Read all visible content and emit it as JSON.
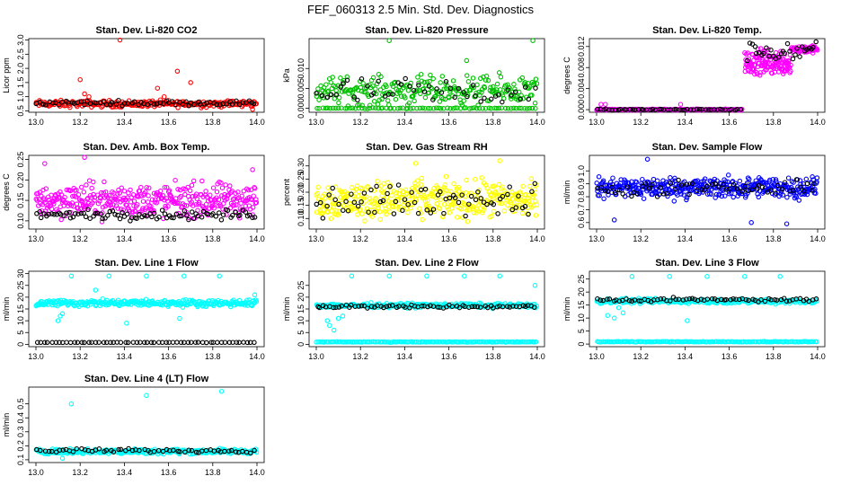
{
  "figure": {
    "title": "FEF_060313  2.5 Min. Std. Dev. Diagnostics",
    "x_ticks": [
      "13.0",
      "13.2",
      "13.4",
      "13.6",
      "13.8",
      "14.0"
    ]
  },
  "chart_data": [
    {
      "id": "co2",
      "type": "scatter",
      "title": "Stan. Dev. Li-820 CO2",
      "ylabel": "Licor ppm",
      "xlim": [
        13.0,
        14.0
      ],
      "ylim": [
        0.45,
        3.05
      ],
      "yticks": [
        "0.5",
        "1.0",
        "1.5",
        "2.0",
        "2.5",
        "3.0"
      ],
      "series": [
        {
          "color": "#ff0000",
          "n": 260,
          "base": 0.75,
          "spread": 0.1,
          "outliers": [
            [
              13.2,
              1.6
            ],
            [
              13.22,
              1.1
            ],
            [
              13.24,
              1.0
            ],
            [
              13.38,
              3.0
            ],
            [
              13.55,
              1.3
            ],
            [
              13.58,
              1.0
            ],
            [
              13.64,
              1.9
            ],
            [
              13.7,
              1.5
            ],
            [
              13.98,
              0.55
            ]
          ]
        },
        {
          "color": "#000000",
          "n": 70,
          "base": 0.78,
          "spread": 0.07,
          "outliers": []
        }
      ]
    },
    {
      "id": "pressure",
      "type": "scatter",
      "title": "Stan. Dev. Li-820 Pressure",
      "ylabel": "kPa",
      "xlim": [
        13.0,
        14.0
      ],
      "ylim": [
        -0.001,
        0.0175
      ],
      "yticks": [
        "0.000",
        "0.005",
        "0.010"
      ],
      "series": [
        {
          "color": "#00c000",
          "n": 260,
          "base": 0.0045,
          "spread": 0.003,
          "outliers": [
            [
              13.33,
              0.017
            ],
            [
              13.68,
              0.012
            ],
            [
              13.98,
              0.017
            ]
          ]
        },
        {
          "color": "#00c000",
          "n": 80,
          "base": 0.0,
          "spread": 0.0001,
          "outliers": []
        },
        {
          "color": "#000000",
          "n": 50,
          "base": 0.004,
          "spread": 0.003,
          "outliers": []
        }
      ]
    },
    {
      "id": "temp",
      "type": "scatter",
      "title": "Stan. Dev. Li-820 Temp.",
      "ylabel": "degrees C",
      "xlim": [
        13.0,
        14.0
      ],
      "ylim": [
        -0.0005,
        0.0135
      ],
      "yticks": [
        "0.000",
        "0.004",
        "0.008",
        "0.012"
      ],
      "series": [
        {
          "color": "#ff00ff",
          "n": 220,
          "base": 0.0,
          "spread": 0.0001,
          "xrange": [
            13.0,
            13.66
          ],
          "outliers": [
            [
              13.02,
              0.001
            ],
            [
              13.04,
              0.001
            ],
            [
              13.38,
              0.001
            ]
          ]
        },
        {
          "color": "#ff00ff",
          "n": 140,
          "base": 0.009,
          "spread": 0.002,
          "xrange": [
            13.67,
            13.88
          ],
          "outliers": []
        },
        {
          "color": "#ff00ff",
          "n": 60,
          "base": 0.0115,
          "spread": 0.0006,
          "xrange": [
            13.88,
            14.0
          ],
          "outliers": []
        },
        {
          "color": "#000000",
          "n": 50,
          "base": 0.0,
          "spread": 0.0001,
          "xrange": [
            13.0,
            13.66
          ],
          "outliers": []
        },
        {
          "color": "#000000",
          "n": 30,
          "base": 0.011,
          "spread": 0.0015,
          "xrange": [
            13.68,
            14.0
          ],
          "outliers": []
        }
      ]
    },
    {
      "id": "ambbox",
      "type": "scatter",
      "title": "Stan. Dev. Amb. Box Temp.",
      "ylabel": "degrees C",
      "xlim": [
        13.0,
        14.0
      ],
      "ylim": [
        0.08,
        0.26
      ],
      "yticks": [
        "0.10",
        "0.15",
        "0.20",
        "0.25"
      ],
      "series": [
        {
          "color": "#ff00ff",
          "n": 380,
          "base": 0.15,
          "spread": 0.035,
          "outliers": [
            [
              13.22,
              0.255
            ],
            [
              13.04,
              0.24
            ],
            [
              13.98,
              0.225
            ]
          ]
        },
        {
          "color": "#000000",
          "n": 90,
          "base": 0.115,
          "spread": 0.01,
          "outliers": []
        }
      ]
    },
    {
      "id": "rh",
      "type": "scatter",
      "title": "Stan. Dev. Gas Stream RH",
      "ylabel": "percent",
      "xlim": [
        13.0,
        14.0
      ],
      "ylim": [
        0.06,
        0.34
      ],
      "yticks": [
        "0.10",
        "0.15",
        "0.20",
        "0.25",
        "0.30"
      ],
      "series": [
        {
          "color": "#ffff00",
          "n": 380,
          "base": 0.17,
          "spread": 0.06,
          "outliers": [
            [
              13.83,
              0.32
            ],
            [
              13.45,
              0.31
            ]
          ]
        },
        {
          "color": "#000000",
          "n": 70,
          "base": 0.17,
          "spread": 0.05,
          "outliers": []
        }
      ]
    },
    {
      "id": "sampleflow",
      "type": "scatter",
      "title": "Stan. Dev. Sample Flow",
      "ylabel": "ml/min",
      "xlim": [
        13.0,
        14.0
      ],
      "ylim": [
        0.55,
        1.12
      ],
      "yticks": [
        "0.6",
        "0.7",
        "0.8",
        "0.9",
        "1.0"
      ],
      "series": [
        {
          "color": "#0000ff",
          "n": 400,
          "base": 0.87,
          "spread": 0.07,
          "outliers": [
            [
              13.23,
              1.09
            ],
            [
              13.08,
              0.62
            ],
            [
              13.7,
              0.6
            ],
            [
              13.86,
              0.59
            ]
          ]
        },
        {
          "color": "#000000",
          "n": 60,
          "base": 0.86,
          "spread": 0.05,
          "outliers": []
        }
      ]
    },
    {
      "id": "line1",
      "type": "scatter",
      "title": "Stan. Dev. Line 1 Flow",
      "ylabel": "ml/min",
      "xlim": [
        13.0,
        14.0
      ],
      "ylim": [
        -1,
        31
      ],
      "yticks": [
        "0",
        "5",
        "10",
        "15",
        "20",
        "25",
        "30"
      ],
      "series": [
        {
          "color": "#00ffff",
          "n": 300,
          "base": 17.5,
          "spread": 1.2,
          "outliers": [
            [
              13.1,
              10
            ],
            [
              13.11,
              12
            ],
            [
              13.12,
              13
            ],
            [
              13.27,
              23
            ],
            [
              13.16,
              29
            ],
            [
              13.33,
              29
            ],
            [
              13.5,
              29
            ],
            [
              13.67,
              29
            ],
            [
              13.83,
              29
            ],
            [
              13.41,
              9
            ],
            [
              13.65,
              11
            ],
            [
              13.99,
              21
            ]
          ]
        },
        {
          "color": "#000000",
          "n": 60,
          "base": 0.8,
          "spread": 0.05,
          "outliers": []
        }
      ]
    },
    {
      "id": "line2",
      "type": "scatter",
      "title": "Stan. Dev. Line 2 Flow",
      "ylabel": "ml/min",
      "xlim": [
        13.0,
        14.0
      ],
      "ylim": [
        -1,
        31
      ],
      "yticks": [
        "0",
        "5",
        "10",
        "15",
        "20",
        "25"
      ],
      "series": [
        {
          "color": "#00ffff",
          "n": 250,
          "base": 16.5,
          "spread": 0.8,
          "outliers": [
            [
              13.05,
              10
            ],
            [
              13.06,
              8
            ],
            [
              13.08,
              6
            ],
            [
              13.1,
              11
            ],
            [
              13.12,
              12
            ],
            [
              13.16,
              29
            ],
            [
              13.33,
              29
            ],
            [
              13.5,
              29
            ],
            [
              13.67,
              29
            ],
            [
              13.83,
              29
            ],
            [
              13.99,
              25
            ]
          ]
        },
        {
          "color": "#00ffff",
          "n": 150,
          "base": 1.0,
          "spread": 0.1,
          "outliers": []
        },
        {
          "color": "#000000",
          "n": 70,
          "base": 16.0,
          "spread": 0.6,
          "outliers": []
        }
      ]
    },
    {
      "id": "line3",
      "type": "scatter",
      "title": "Stan. Dev. Line 3 Flow",
      "ylabel": "ml/min",
      "xlim": [
        13.0,
        14.0
      ],
      "ylim": [
        -1,
        28
      ],
      "yticks": [
        "0",
        "5",
        "10",
        "15",
        "20",
        "25"
      ],
      "series": [
        {
          "color": "#00ffff",
          "n": 250,
          "base": 16.5,
          "spread": 0.8,
          "outliers": [
            [
              13.05,
              11
            ],
            [
              13.08,
              10
            ],
            [
              13.1,
              14
            ],
            [
              13.12,
              12
            ],
            [
              13.16,
              26
            ],
            [
              13.33,
              26
            ],
            [
              13.5,
              26
            ],
            [
              13.67,
              26
            ],
            [
              13.83,
              26
            ],
            [
              13.41,
              9
            ]
          ]
        },
        {
          "color": "#00ffff",
          "n": 150,
          "base": 0.9,
          "spread": 0.1,
          "outliers": []
        },
        {
          "color": "#000000",
          "n": 70,
          "base": 17.0,
          "spread": 0.6,
          "outliers": []
        }
      ]
    },
    {
      "id": "line4",
      "type": "scatter",
      "title": "Stan. Dev. Line 4 (LT) Flow",
      "ylabel": "ml/min",
      "xlim": [
        13.0,
        14.0
      ],
      "ylim": [
        0.08,
        0.62
      ],
      "yticks": [
        "0.1",
        "0.2",
        "0.3",
        "0.4",
        "0.5"
      ],
      "series": [
        {
          "color": "#00ffff",
          "n": 300,
          "base": 0.16,
          "spread": 0.015,
          "outliers": [
            [
              13.16,
              0.5
            ],
            [
              13.5,
              0.56
            ],
            [
              13.84,
              0.59
            ],
            [
              13.12,
              0.11
            ]
          ]
        },
        {
          "color": "#000000",
          "n": 60,
          "base": 0.165,
          "spread": 0.012,
          "outliers": []
        }
      ]
    }
  ]
}
